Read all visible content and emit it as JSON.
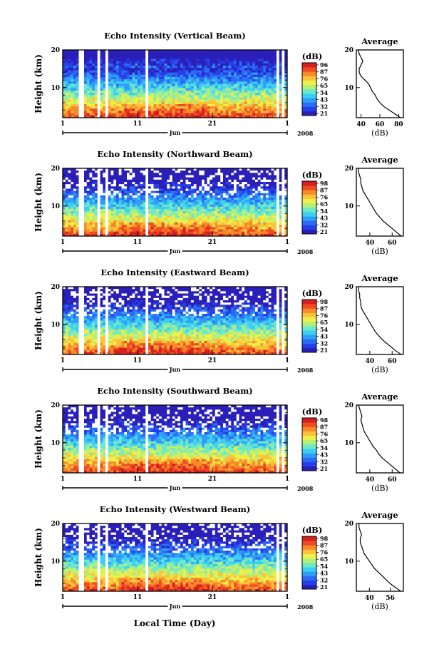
{
  "figure": {
    "xlabel": "Local Time (Day)",
    "month_label": "Jun",
    "year_label": "2008",
    "avg_title": "Average",
    "avg_xlabel": "(dB)",
    "colorbar_unit": "(dB)"
  },
  "colors": {
    "colormap": [
      "#2a1fb8",
      "#2540e8",
      "#2a6cf5",
      "#2f9ef6",
      "#3dcff2",
      "#6fe8c8",
      "#b3ef7a",
      "#eef04a",
      "#fcc33a",
      "#f88a2a",
      "#ef4a22",
      "#d71f1f"
    ],
    "gap": "#ffffff"
  },
  "chart_data": [
    {
      "type": "heatmap",
      "title": "Echo Intensity (Vertical Beam)",
      "ylabel": "Height (km)",
      "x_ticks": [
        "1",
        "11",
        "21",
        "1"
      ],
      "y_ticks": [
        "20",
        "10"
      ],
      "ylim": [
        2,
        20
      ],
      "colorbar_ticks": [
        "96",
        "87",
        "76",
        "65",
        "54",
        "43",
        "32",
        "21"
      ],
      "avg": {
        "x_ticks": [
          "40",
          "60",
          "80"
        ],
        "xlim": [
          35,
          85
        ],
        "y_ticks": [
          "20",
          "10"
        ],
        "ylim": [
          2,
          20
        ],
        "profile_km": [
          2,
          3,
          4,
          5,
          6,
          7,
          8,
          9,
          10,
          11,
          12,
          13,
          14,
          15,
          16,
          17,
          18,
          19,
          20
        ],
        "profile_db": [
          82,
          76,
          70,
          64,
          60,
          57,
          55,
          52,
          50,
          48,
          44,
          40,
          38,
          38,
          40,
          42,
          40,
          38,
          37
        ]
      }
    },
    {
      "type": "heatmap",
      "title": "Echo Intensity (Northward Beam)",
      "ylabel": "Height (km)",
      "x_ticks": [
        "1",
        "11",
        "21",
        "1"
      ],
      "y_ticks": [
        "20",
        "10"
      ],
      "ylim": [
        2,
        20
      ],
      "colorbar_ticks": [
        "98",
        "87",
        "76",
        "65",
        "54",
        "43",
        "32",
        "21"
      ],
      "avg": {
        "x_ticks": [
          "40",
          "60"
        ],
        "xlim": [
          28,
          70
        ],
        "y_ticks": [
          "20",
          "10"
        ],
        "ylim": [
          2,
          20
        ],
        "profile_km": [
          2,
          3,
          4,
          5,
          6,
          7,
          8,
          9,
          10,
          11,
          12,
          13,
          14,
          15,
          16,
          17,
          18,
          19,
          20
        ],
        "profile_db": [
          68,
          64,
          60,
          56,
          52,
          49,
          46,
          44,
          42,
          40,
          38,
          36,
          34,
          33,
          32,
          32,
          31,
          30,
          30
        ]
      }
    },
    {
      "type": "heatmap",
      "title": "Echo Intensity (Eastward Beam)",
      "ylabel": "Height (km)",
      "x_ticks": [
        "1",
        "11",
        "21",
        "1"
      ],
      "y_ticks": [
        "20",
        "10"
      ],
      "ylim": [
        2,
        20
      ],
      "colorbar_ticks": [
        "98",
        "87",
        "76",
        "65",
        "54",
        "43",
        "32",
        "21"
      ],
      "avg": {
        "x_ticks": [
          "40",
          "60"
        ],
        "xlim": [
          28,
          70
        ],
        "y_ticks": [
          "20",
          "10"
        ],
        "ylim": [
          2,
          20
        ],
        "profile_km": [
          2,
          3,
          4,
          5,
          6,
          7,
          8,
          9,
          10,
          11,
          12,
          13,
          14,
          15,
          16,
          17,
          18,
          19,
          20
        ],
        "profile_db": [
          68,
          63,
          59,
          55,
          51,
          48,
          45,
          43,
          41,
          39,
          37,
          35,
          33,
          32,
          32,
          31,
          31,
          30,
          30
        ]
      }
    },
    {
      "type": "heatmap",
      "title": "Echo Intensity (Southward Beam)",
      "ylabel": "Height (km)",
      "x_ticks": [
        "1",
        "11",
        "21",
        "1"
      ],
      "y_ticks": [
        "20",
        "10"
      ],
      "ylim": [
        2,
        20
      ],
      "colorbar_ticks": [
        "98",
        "87",
        "76",
        "65",
        "54",
        "43",
        "32",
        "21"
      ],
      "avg": {
        "x_ticks": [
          "40",
          "60"
        ],
        "xlim": [
          28,
          70
        ],
        "y_ticks": [
          "20",
          "10"
        ],
        "ylim": [
          2,
          20
        ],
        "profile_km": [
          2,
          3,
          4,
          5,
          6,
          7,
          8,
          9,
          10,
          11,
          12,
          13,
          14,
          15,
          16,
          17,
          18,
          19,
          20
        ],
        "profile_db": [
          67,
          63,
          59,
          55,
          51,
          48,
          46,
          43,
          41,
          39,
          37,
          35,
          34,
          33,
          32,
          33,
          32,
          31,
          30
        ]
      }
    },
    {
      "type": "heatmap",
      "title": "Echo Intensity (Westward Beam)",
      "ylabel": "Height (km)",
      "x_ticks": [
        "1",
        "11",
        "21",
        "1"
      ],
      "y_ticks": [
        "20",
        "10"
      ],
      "ylim": [
        2,
        20
      ],
      "colorbar_ticks": [
        "98",
        "87",
        "76",
        "65",
        "54",
        "43",
        "32",
        "21"
      ],
      "avg": {
        "x_ticks": [
          "40",
          "56"
        ],
        "xlim": [
          30,
          66
        ],
        "y_ticks": [
          "20",
          "10"
        ],
        "ylim": [
          2,
          20
        ],
        "profile_km": [
          2,
          3,
          4,
          5,
          6,
          7,
          8,
          9,
          10,
          11,
          12,
          13,
          14,
          15,
          16,
          17,
          18,
          19,
          20
        ],
        "profile_db": [
          64,
          60,
          56,
          53,
          50,
          47,
          44,
          42,
          40,
          38,
          36,
          35,
          34,
          33,
          33,
          34,
          33,
          32,
          32
        ]
      }
    }
  ]
}
